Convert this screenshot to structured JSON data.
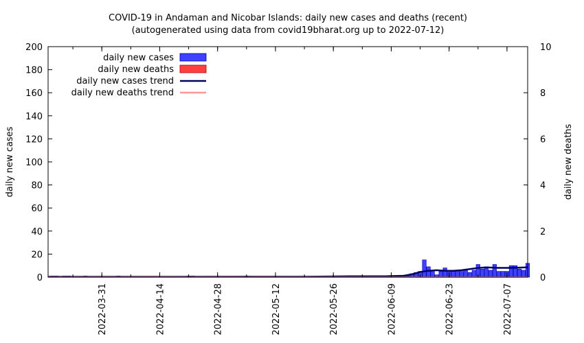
{
  "chart_data": {
    "type": "bar",
    "title": "COVID-19 in Andaman and Nicobar Islands: daily new cases and deaths (recent)",
    "subtitle": "(autogenerated using data from covid19bharat.org up to 2022-07-12)",
    "ylabel": "daily new cases",
    "y2label": "daily new deaths",
    "ylim": [
      0,
      200
    ],
    "y2lim": [
      0,
      10
    ],
    "yticks": [
      0,
      20,
      40,
      60,
      80,
      100,
      120,
      140,
      160,
      180,
      200
    ],
    "y2ticks": [
      0,
      2,
      4,
      6,
      8,
      10
    ],
    "xlim": [
      "2022-03-18",
      "2022-07-12"
    ],
    "xticks": [
      "2022-03-31",
      "2022-04-14",
      "2022-04-28",
      "2022-05-12",
      "2022-05-26",
      "2022-06-09",
      "2022-06-23",
      "2022-07-07"
    ],
    "legend_position": "top-left",
    "grid": false,
    "colors": {
      "cases": "#4040ff",
      "deaths": "#ff4040",
      "cases_trend": "#000060",
      "deaths_trend": "#ff9999"
    },
    "series": [
      {
        "name": "daily new cases",
        "kind": "bar",
        "axis": "left",
        "points": [
          [
            "2022-03-19",
            1
          ],
          [
            "2022-03-20",
            1
          ],
          [
            "2022-03-22",
            1
          ],
          [
            "2022-03-23",
            1
          ],
          [
            "2022-03-27",
            1
          ],
          [
            "2022-04-04",
            1
          ],
          [
            "2022-04-21",
            1
          ],
          [
            "2022-04-22",
            1
          ],
          [
            "2022-05-05",
            1
          ],
          [
            "2022-05-24",
            1
          ],
          [
            "2022-05-26",
            1
          ],
          [
            "2022-05-27",
            1
          ],
          [
            "2022-06-02",
            1
          ],
          [
            "2022-06-06",
            1
          ],
          [
            "2022-06-07",
            1
          ],
          [
            "2022-06-10",
            1
          ],
          [
            "2022-06-11",
            1
          ],
          [
            "2022-06-13",
            1
          ],
          [
            "2022-06-14",
            3
          ],
          [
            "2022-06-15",
            4
          ],
          [
            "2022-06-16",
            5
          ],
          [
            "2022-06-17",
            15
          ],
          [
            "2022-06-18",
            9
          ],
          [
            "2022-06-19",
            6
          ],
          [
            "2022-06-20",
            2
          ],
          [
            "2022-06-21",
            5
          ],
          [
            "2022-06-22",
            8
          ],
          [
            "2022-06-23",
            5
          ],
          [
            "2022-06-24",
            5
          ],
          [
            "2022-06-25",
            6
          ],
          [
            "2022-06-26",
            5
          ],
          [
            "2022-06-27",
            6
          ],
          [
            "2022-06-28",
            4
          ],
          [
            "2022-06-29",
            6
          ],
          [
            "2022-06-30",
            11
          ],
          [
            "2022-07-01",
            7
          ],
          [
            "2022-07-02",
            9
          ],
          [
            "2022-07-03",
            6
          ],
          [
            "2022-07-04",
            11
          ],
          [
            "2022-07-05",
            5
          ],
          [
            "2022-07-06",
            5
          ],
          [
            "2022-07-07",
            5
          ],
          [
            "2022-07-08",
            10
          ],
          [
            "2022-07-09",
            10
          ],
          [
            "2022-07-10",
            7
          ],
          [
            "2022-07-11",
            6
          ],
          [
            "2022-07-12",
            12
          ]
        ]
      },
      {
        "name": "daily new deaths",
        "kind": "bar",
        "axis": "right",
        "points": []
      },
      {
        "name": "daily new cases trend",
        "kind": "line",
        "axis": "left",
        "points": [
          [
            "2022-03-18",
            0.3
          ],
          [
            "2022-04-10",
            0.3
          ],
          [
            "2022-05-05",
            0.4
          ],
          [
            "2022-05-20",
            0.4
          ],
          [
            "2022-05-28",
            0.7
          ],
          [
            "2022-06-08",
            0.8
          ],
          [
            "2022-06-12",
            1.2
          ],
          [
            "2022-06-14",
            2.5
          ],
          [
            "2022-06-16",
            4.5
          ],
          [
            "2022-06-18",
            5.5
          ],
          [
            "2022-06-20",
            6
          ],
          [
            "2022-06-22",
            5.5
          ],
          [
            "2022-06-24",
            5.5
          ],
          [
            "2022-06-26",
            6
          ],
          [
            "2022-06-28",
            7
          ],
          [
            "2022-06-30",
            8
          ],
          [
            "2022-07-02",
            8.5
          ],
          [
            "2022-07-05",
            8
          ],
          [
            "2022-07-08",
            8
          ],
          [
            "2022-07-12",
            8.5
          ]
        ]
      },
      {
        "name": "daily new deaths trend",
        "kind": "line",
        "axis": "right",
        "points": [
          [
            "2022-03-18",
            0
          ],
          [
            "2022-07-12",
            0
          ]
        ]
      }
    ]
  }
}
